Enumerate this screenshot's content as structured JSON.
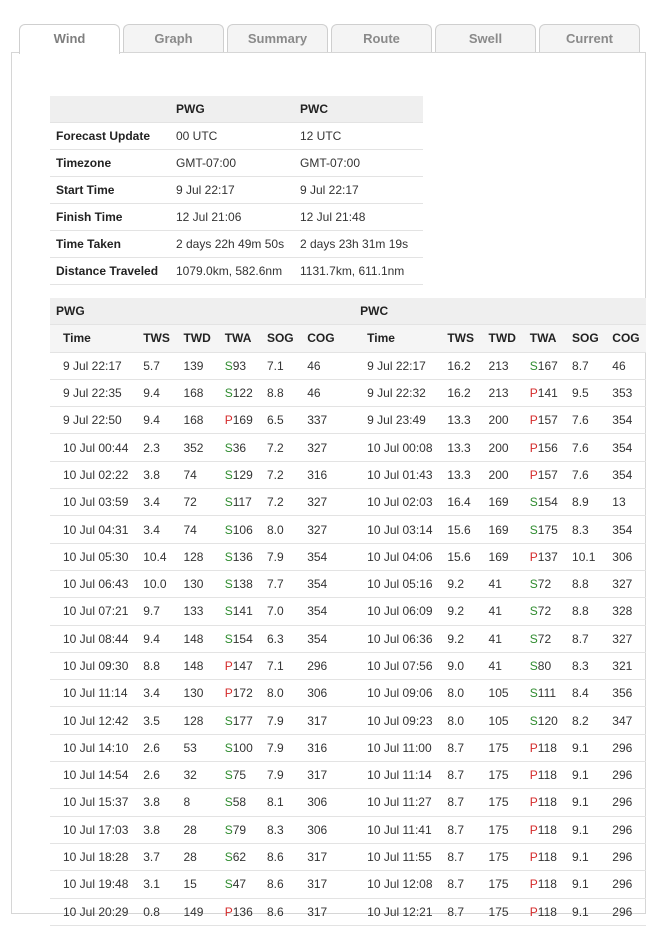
{
  "tabs": [
    "Wind",
    "Graph",
    "Summary",
    "Route",
    "Swell",
    "Current"
  ],
  "active_tab": "Wind",
  "summary": {
    "columns": [
      "PWG",
      "PWC"
    ],
    "rows": [
      {
        "label": "Forecast Update",
        "pwg": "00 UTC",
        "pwc": "12 UTC"
      },
      {
        "label": "Timezone",
        "pwg": "GMT-07:00",
        "pwc": "GMT-07:00"
      },
      {
        "label": "Start Time",
        "pwg": "9 Jul 22:17",
        "pwc": "9 Jul 22:17"
      },
      {
        "label": "Finish Time",
        "pwg": "12 Jul 21:06",
        "pwc": "12 Jul 21:48"
      },
      {
        "label": "Time Taken",
        "pwg": "2 days 22h 49m 50s",
        "pwc": "2 days 23h 31m 19s"
      },
      {
        "label": "Distance Traveled",
        "pwg": "1079.0km, 582.6nm",
        "pwc": "1131.7km, 611.1nm"
      }
    ]
  },
  "legs": {
    "left_title": "PWG",
    "right_title": "PWC",
    "columns": [
      "Time",
      "TWS",
      "TWD",
      "TWA",
      "SOG",
      "COG"
    ],
    "colors": {
      "starboard": "#2e8b2e",
      "port": "#d42a2a"
    },
    "pwg": [
      [
        "9 Jul 22:17",
        "5.7",
        "139",
        "S",
        "93",
        "7.1",
        "46"
      ],
      [
        "9 Jul 22:35",
        "9.4",
        "168",
        "S",
        "122",
        "8.8",
        "46"
      ],
      [
        "9 Jul 22:50",
        "9.4",
        "168",
        "P",
        "169",
        "6.5",
        "337"
      ],
      [
        "10 Jul 00:44",
        "2.3",
        "352",
        "S",
        "36",
        "7.2",
        "327"
      ],
      [
        "10 Jul 02:22",
        "3.8",
        "74",
        "S",
        "129",
        "7.2",
        "316"
      ],
      [
        "10 Jul 03:59",
        "3.4",
        "72",
        "S",
        "117",
        "7.2",
        "327"
      ],
      [
        "10 Jul 04:31",
        "3.4",
        "74",
        "S",
        "106",
        "8.0",
        "327"
      ],
      [
        "10 Jul 05:30",
        "10.4",
        "128",
        "S",
        "136",
        "7.9",
        "354"
      ],
      [
        "10 Jul 06:43",
        "10.0",
        "130",
        "S",
        "138",
        "7.7",
        "354"
      ],
      [
        "10 Jul 07:21",
        "9.7",
        "133",
        "S",
        "141",
        "7.0",
        "354"
      ],
      [
        "10 Jul 08:44",
        "9.4",
        "148",
        "S",
        "154",
        "6.3",
        "354"
      ],
      [
        "10 Jul 09:30",
        "8.8",
        "148",
        "P",
        "147",
        "7.1",
        "296"
      ],
      [
        "10 Jul 11:14",
        "3.4",
        "130",
        "P",
        "172",
        "8.0",
        "306"
      ],
      [
        "10 Jul 12:42",
        "3.5",
        "128",
        "S",
        "177",
        "7.9",
        "317"
      ],
      [
        "10 Jul 14:10",
        "2.6",
        "53",
        "S",
        "100",
        "7.9",
        "316"
      ],
      [
        "10 Jul 14:54",
        "2.6",
        "32",
        "S",
        "75",
        "7.9",
        "317"
      ],
      [
        "10 Jul 15:37",
        "3.8",
        "8",
        "S",
        "58",
        "8.1",
        "306"
      ],
      [
        "10 Jul 17:03",
        "3.8",
        "28",
        "S",
        "79",
        "8.3",
        "306"
      ],
      [
        "10 Jul 18:28",
        "3.7",
        "28",
        "S",
        "62",
        "8.6",
        "317"
      ],
      [
        "10 Jul 19:48",
        "3.1",
        "15",
        "S",
        "47",
        "8.6",
        "317"
      ],
      [
        "10 Jul 20:29",
        "0.8",
        "149",
        "P",
        "136",
        "8.6",
        "317"
      ]
    ],
    "pwc": [
      [
        "9 Jul 22:17",
        "16.2",
        "213",
        "S",
        "167",
        "8.7",
        "46"
      ],
      [
        "9 Jul 22:32",
        "16.2",
        "213",
        "P",
        "141",
        "9.5",
        "353"
      ],
      [
        "9 Jul 23:49",
        "13.3",
        "200",
        "P",
        "157",
        "7.6",
        "354"
      ],
      [
        "10 Jul 00:08",
        "13.3",
        "200",
        "P",
        "156",
        "7.6",
        "354"
      ],
      [
        "10 Jul 01:43",
        "13.3",
        "200",
        "P",
        "157",
        "7.6",
        "354"
      ],
      [
        "10 Jul 02:03",
        "16.4",
        "169",
        "S",
        "154",
        "8.9",
        "13"
      ],
      [
        "10 Jul 03:14",
        "15.6",
        "169",
        "S",
        "175",
        "8.3",
        "354"
      ],
      [
        "10 Jul 04:06",
        "15.6",
        "169",
        "P",
        "137",
        "10.1",
        "306"
      ],
      [
        "10 Jul 05:16",
        "9.2",
        "41",
        "S",
        "72",
        "8.8",
        "327"
      ],
      [
        "10 Jul 06:09",
        "9.2",
        "41",
        "S",
        "72",
        "8.8",
        "328"
      ],
      [
        "10 Jul 06:36",
        "9.2",
        "41",
        "S",
        "72",
        "8.7",
        "327"
      ],
      [
        "10 Jul 07:56",
        "9.0",
        "41",
        "S",
        "80",
        "8.3",
        "321"
      ],
      [
        "10 Jul 09:06",
        "8.0",
        "105",
        "S",
        "111",
        "8.4",
        "356"
      ],
      [
        "10 Jul 09:23",
        "8.0",
        "105",
        "S",
        "120",
        "8.2",
        "347"
      ],
      [
        "10 Jul 11:00",
        "8.7",
        "175",
        "P",
        "118",
        "9.1",
        "296"
      ],
      [
        "10 Jul 11:14",
        "8.7",
        "175",
        "P",
        "118",
        "9.1",
        "296"
      ],
      [
        "10 Jul 11:27",
        "8.7",
        "175",
        "P",
        "118",
        "9.1",
        "296"
      ],
      [
        "10 Jul 11:41",
        "8.7",
        "175",
        "P",
        "118",
        "9.1",
        "296"
      ],
      [
        "10 Jul 11:55",
        "8.7",
        "175",
        "P",
        "118",
        "9.1",
        "296"
      ],
      [
        "10 Jul 12:08",
        "8.7",
        "175",
        "P",
        "118",
        "9.1",
        "296"
      ],
      [
        "10 Jul 12:21",
        "8.7",
        "175",
        "P",
        "118",
        "9.1",
        "296"
      ]
    ]
  }
}
